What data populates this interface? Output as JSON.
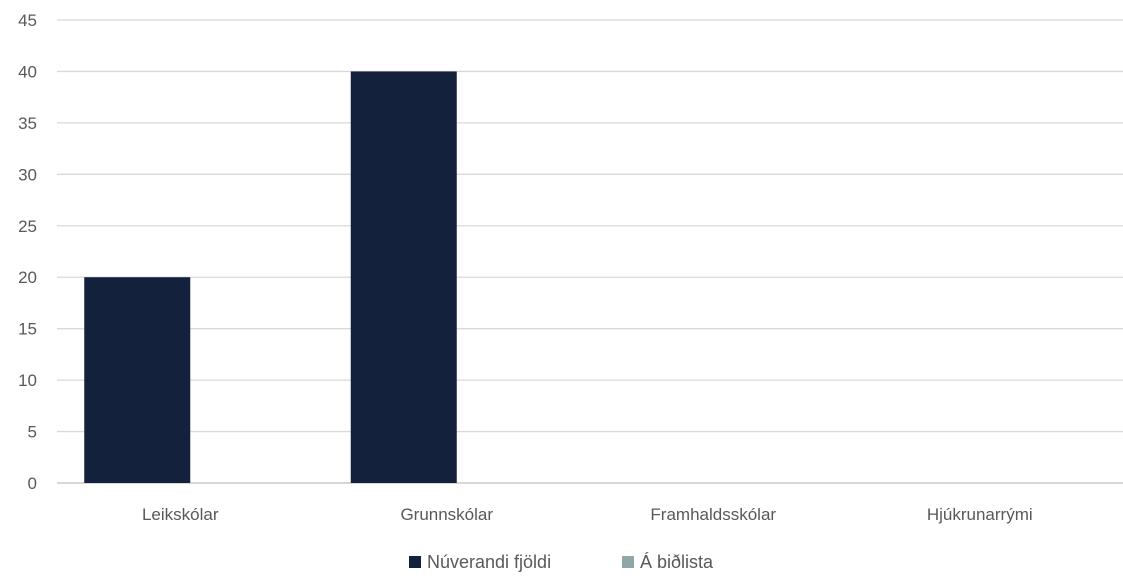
{
  "chart_data": {
    "type": "bar",
    "categories": [
      "Leikskólar",
      "Grunnskólar",
      "Framhaldsskólar",
      "Hjúkrunarrými"
    ],
    "series": [
      {
        "name": "Núverandi fjöldi",
        "color": "#14213d",
        "values": [
          20,
          40,
          0,
          0
        ]
      },
      {
        "name": "Á biðlista",
        "color": "#8fa8a6",
        "values": [
          0,
          0,
          0,
          0
        ]
      }
    ],
    "ylim": [
      0,
      45
    ],
    "yticks": [
      0,
      5,
      10,
      15,
      20,
      25,
      30,
      35,
      40,
      45
    ],
    "grid": true,
    "legend_position": "bottom",
    "title": "",
    "xlabel": "",
    "ylabel": ""
  }
}
